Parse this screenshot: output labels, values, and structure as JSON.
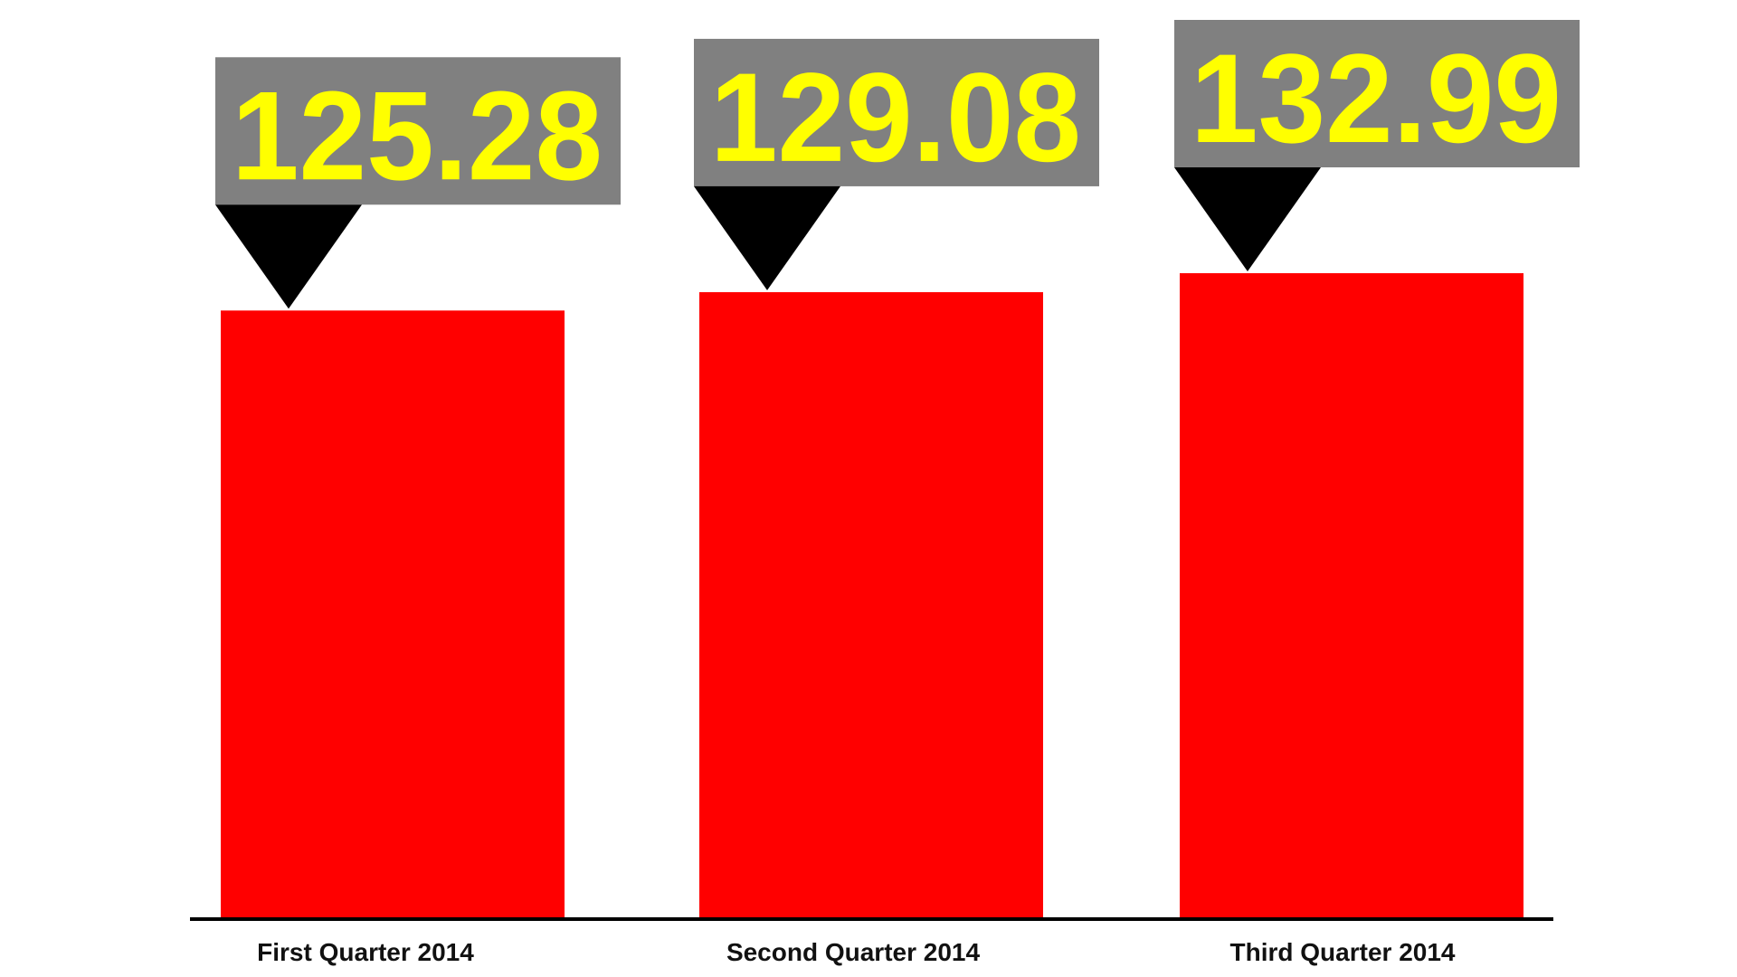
{
  "chart_data": {
    "type": "bar",
    "categories": [
      "First Quarter 2014",
      "Second Quarter 2014",
      "Third Quarter 2014"
    ],
    "values": [
      125.28,
      129.08,
      132.99
    ],
    "color": "#ff0000"
  }
}
